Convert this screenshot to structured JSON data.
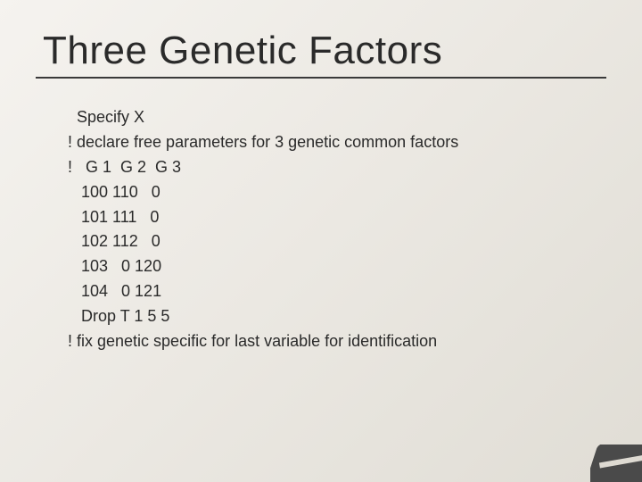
{
  "slide": {
    "title": "Three Genetic Factors",
    "title_fontsize": 44,
    "title_color": "#2a2a2a",
    "underline_color": "#3a3a3a",
    "underline_width": 640,
    "background_gradient": [
      "#f5f3ef",
      "#ebe8e2",
      "#e0ddd5"
    ],
    "body_fontsize": 18,
    "body_color": "#2a2a2a",
    "body_font": "Verdana",
    "lines": [
      "  Specify X",
      "! declare free parameters for 3 genetic common factors",
      "!   G 1  G 2  G 3",
      "   100 110   0",
      "   101 111   0",
      "   102 112   0",
      "   103   0 120",
      "   104   0 121",
      "   Drop T 1 5 5",
      "! fix genetic specific for last variable for identification"
    ],
    "corner_color": "#4a4a4a"
  }
}
